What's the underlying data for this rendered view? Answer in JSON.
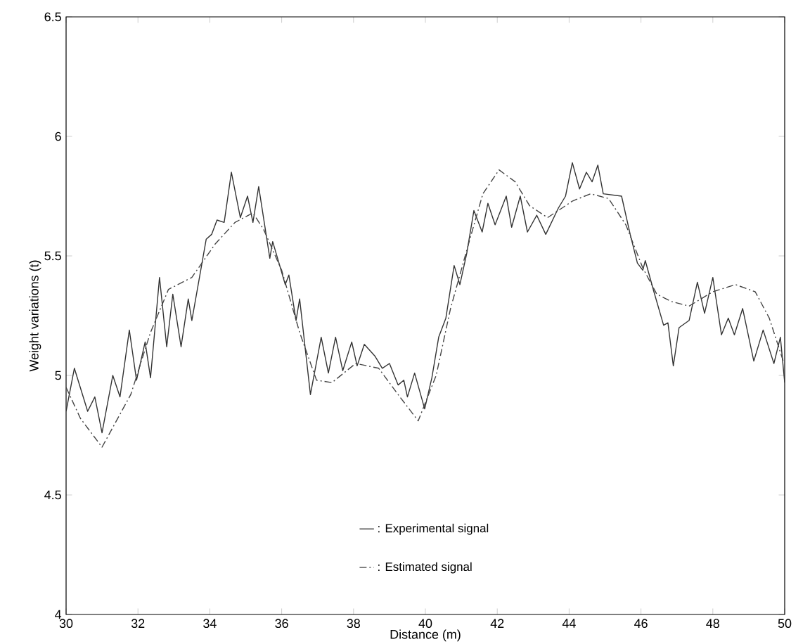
{
  "chart_data": {
    "type": "line",
    "xlabel": "Distance (m)",
    "ylabel": "Weight variations (t)",
    "xlim": [
      30,
      50
    ],
    "ylim": [
      4,
      6.5
    ],
    "xticks": [
      30,
      32,
      34,
      36,
      38,
      40,
      42,
      44,
      46,
      48,
      50
    ],
    "yticks": [
      4,
      4.5,
      5,
      5.5,
      6,
      6.5
    ],
    "grid": false,
    "legend": "bottom",
    "marker": "none",
    "series": [
      {
        "name": ": Experimental signal",
        "color": "#333333",
        "line_style": "solid",
        "x": [
          30,
          30.23,
          30.6,
          30.8,
          31.0,
          31.3,
          31.5,
          31.76,
          31.96,
          32.2,
          32.35,
          32.6,
          32.8,
          32.97,
          33.2,
          33.4,
          33.5,
          33.9,
          34.05,
          34.2,
          34.4,
          34.6,
          34.85,
          35.05,
          35.2,
          35.36,
          35.67,
          35.75,
          36.1,
          36.2,
          36.4,
          36.5,
          36.8,
          37.1,
          37.3,
          37.5,
          37.7,
          37.95,
          38.1,
          38.3,
          38.6,
          38.8,
          39.0,
          39.24,
          39.4,
          39.5,
          39.7,
          39.98,
          40.18,
          40.37,
          40.57,
          40.8,
          40.96,
          41.15,
          41.35,
          41.58,
          41.74,
          41.94,
          42.25,
          42.4,
          42.64,
          42.84,
          43.1,
          43.35,
          43.7,
          43.9,
          44.09,
          44.29,
          44.48,
          44.64,
          44.8,
          44.95,
          45.46,
          45.7,
          45.9,
          46.05,
          46.12,
          46.36,
          46.63,
          46.75,
          46.9,
          47.06,
          47.34,
          47.57,
          47.77,
          48.0,
          48.24,
          48.43,
          48.6,
          48.83,
          49.14,
          49.4,
          49.7,
          49.88,
          50.0
        ],
        "values": [
          4.85,
          5.03,
          4.85,
          4.91,
          4.76,
          5.0,
          4.91,
          5.19,
          4.98,
          5.14,
          4.99,
          5.41,
          5.12,
          5.34,
          5.12,
          5.32,
          5.23,
          5.57,
          5.59,
          5.65,
          5.64,
          5.85,
          5.66,
          5.75,
          5.64,
          5.79,
          5.49,
          5.56,
          5.38,
          5.42,
          5.23,
          5.32,
          4.92,
          5.16,
          5.01,
          5.16,
          5.02,
          5.14,
          5.04,
          5.13,
          5.08,
          5.03,
          5.05,
          4.96,
          4.98,
          4.91,
          5.01,
          4.86,
          4.99,
          5.16,
          5.24,
          5.46,
          5.38,
          5.51,
          5.69,
          5.6,
          5.72,
          5.63,
          5.75,
          5.62,
          5.75,
          5.6,
          5.67,
          5.59,
          5.7,
          5.75,
          5.89,
          5.78,
          5.85,
          5.81,
          5.88,
          5.76,
          5.75,
          5.59,
          5.47,
          5.44,
          5.48,
          5.35,
          5.21,
          5.22,
          5.04,
          5.2,
          5.23,
          5.39,
          5.26,
          5.41,
          5.17,
          5.24,
          5.17,
          5.28,
          5.06,
          5.19,
          5.05,
          5.16,
          4.97
        ]
      },
      {
        "name": ": Estimated signal",
        "color": "#444444",
        "line_style": "dashed",
        "x": [
          30,
          30.4,
          31.0,
          31.8,
          32.35,
          32.85,
          33.5,
          34.15,
          34.7,
          35.2,
          35.5,
          36.0,
          36.5,
          36.97,
          37.4,
          38.06,
          38.7,
          39.24,
          39.8,
          40.3,
          40.7,
          41.2,
          41.6,
          42.05,
          42.5,
          42.9,
          43.4,
          44.1,
          44.6,
          45.1,
          45.58,
          46.05,
          46.44,
          46.83,
          47.34,
          48.0,
          48.63,
          49.18,
          49.57,
          49.96
        ],
        "values": [
          4.95,
          4.82,
          4.7,
          4.92,
          5.18,
          5.36,
          5.41,
          5.55,
          5.64,
          5.68,
          5.61,
          5.44,
          5.18,
          4.98,
          4.97,
          5.05,
          5.03,
          4.92,
          4.81,
          5.0,
          5.28,
          5.55,
          5.76,
          5.86,
          5.81,
          5.71,
          5.66,
          5.73,
          5.76,
          5.74,
          5.63,
          5.45,
          5.34,
          5.31,
          5.29,
          5.35,
          5.38,
          5.35,
          5.24,
          5.06
        ]
      }
    ]
  }
}
